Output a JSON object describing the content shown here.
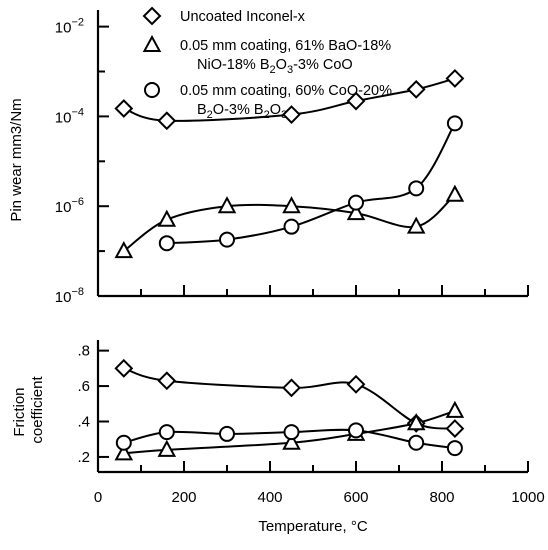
{
  "chart_data": [
    {
      "type": "line",
      "ylabel": "Pin wear mm3/Nm",
      "yscale": "log",
      "ylim": [
        1e-08,
        0.01
      ],
      "xlim": [
        0,
        1000
      ],
      "ytick_labels": [
        {
          "value": 0.01,
          "base": "10",
          "exp": "−2"
        },
        {
          "value": 0.0001,
          "base": "10",
          "exp": "−4"
        },
        {
          "value": 1e-06,
          "base": "10",
          "exp": "−6"
        },
        {
          "value": 1e-08,
          "base": "10",
          "exp": "−8"
        }
      ],
      "legend": {
        "placement": "top",
        "entries": [
          {
            "marker": "diamond",
            "lines": [
              [
                {
                  "t": "Uncoated Inconel-x"
                }
              ]
            ]
          },
          {
            "marker": "triangle",
            "lines": [
              [
                {
                  "t": "0.05 mm coating, 61% BaO-18%"
                }
              ],
              [
                {
                  "t": "NiO-18% B"
                },
                {
                  "t": "2",
                  "sub": true
                },
                {
                  "t": "O"
                },
                {
                  "t": "3",
                  "sub": true
                },
                {
                  "t": "-3% CoO"
                }
              ]
            ]
          },
          {
            "marker": "circle",
            "lines": [
              [
                {
                  "t": "0.05 mm coating, 60% CoO-20%"
                }
              ],
              [
                {
                  "t": "B"
                },
                {
                  "t": "2",
                  "sub": true
                },
                {
                  "t": "O-3% B"
                },
                {
                  "t": "2",
                  "sub": true
                },
                {
                  "t": "O"
                },
                {
                  "t": "3",
                  "sub": true
                }
              ]
            ]
          }
        ]
      },
      "series": [
        {
          "marker": "diamond",
          "x": [
            60,
            160,
            450,
            600,
            740,
            830
          ],
          "y": [
            0.00015,
            8e-05,
            0.00011,
            0.00022,
            0.0004,
            0.0007
          ]
        },
        {
          "marker": "triangle",
          "x": [
            60,
            160,
            300,
            450,
            600,
            740,
            830
          ],
          "y": [
            1e-07,
            5e-07,
            1e-06,
            1e-06,
            7e-07,
            3.5e-07,
            1.8e-06
          ]
        },
        {
          "marker": "circle",
          "x": [
            160,
            300,
            450,
            600,
            740,
            830
          ],
          "y": [
            1.5e-07,
            1.8e-07,
            3.5e-07,
            1.2e-06,
            2.5e-06,
            7e-05
          ]
        }
      ]
    },
    {
      "type": "line",
      "ylabel": "Friction\ncoefficient",
      "xlabel": "Temperature, °C",
      "ylim": [
        0.2,
        0.8
      ],
      "xlim": [
        0,
        1000
      ],
      "yticks": [
        ".8",
        ".6",
        ".4",
        ".2"
      ],
      "xticks": [
        "0",
        "200",
        "400",
        "600",
        "800",
        "1000"
      ],
      "series": [
        {
          "marker": "diamond",
          "x": [
            60,
            160,
            450,
            600,
            740,
            830
          ],
          "y": [
            0.7,
            0.63,
            0.59,
            0.61,
            0.39,
            0.36
          ]
        },
        {
          "marker": "triangle",
          "x": [
            60,
            160,
            450,
            600,
            740,
            830
          ],
          "y": [
            0.22,
            0.24,
            0.28,
            0.33,
            0.39,
            0.46
          ]
        },
        {
          "marker": "circle",
          "x": [
            60,
            160,
            300,
            450,
            600,
            740,
            830
          ],
          "y": [
            0.28,
            0.34,
            0.33,
            0.34,
            0.35,
            0.28,
            0.25
          ]
        }
      ]
    }
  ]
}
